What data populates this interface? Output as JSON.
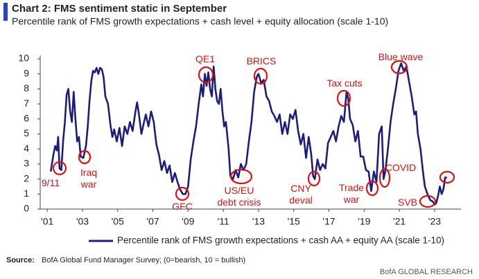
{
  "chart_data": {
    "type": "line",
    "title": "Chart 2: FMS sentiment static in September",
    "subtitle": "Percentile rank of FMS growth expectations + cash level + equity allocation (scale 1-10)",
    "xlim": [
      2000.6,
      2024.5
    ],
    "xticks": [
      {
        "value": 2001,
        "label": "'01"
      },
      {
        "value": 2003,
        "label": "'03"
      },
      {
        "value": 2005,
        "label": "'05"
      },
      {
        "value": 2007,
        "label": "'07"
      },
      {
        "value": 2009,
        "label": "'09"
      },
      {
        "value": 2011,
        "label": "'11"
      },
      {
        "value": 2013,
        "label": "'13"
      },
      {
        "value": 2015,
        "label": "'15"
      },
      {
        "value": 2017,
        "label": "'17"
      },
      {
        "value": 2019,
        "label": "'19"
      },
      {
        "value": 2021,
        "label": "'21"
      },
      {
        "value": 2023,
        "label": "'23"
      }
    ],
    "ylim": [
      0,
      10
    ],
    "yticks": [
      0,
      1,
      2,
      3,
      4,
      5,
      6,
      7,
      8,
      9,
      10
    ],
    "legend": "bottom",
    "series": [
      {
        "name": "Percentile rank of FMS growth expectations + cash AA + equity AA (scale 1-10)",
        "color": "#1c1c80",
        "x": [
          2001.2,
          2001.35,
          2001.45,
          2001.55,
          2001.62,
          2001.7,
          2001.8,
          2001.9,
          2002.0,
          2002.1,
          2002.2,
          2002.3,
          2002.4,
          2002.5,
          2002.6,
          2002.7,
          2002.8,
          2002.9,
          2003.05,
          2003.2,
          2003.3,
          2003.4,
          2003.5,
          2003.6,
          2003.7,
          2003.8,
          2003.9,
          2004.0,
          2004.1,
          2004.2,
          2004.3,
          2004.45,
          2004.6,
          2004.7,
          2004.8,
          2004.95,
          2005.1,
          2005.25,
          2005.4,
          2005.55,
          2005.7,
          2005.85,
          2006.0,
          2006.1,
          2006.2,
          2006.35,
          2006.5,
          2006.6,
          2006.75,
          2006.9,
          2007.05,
          2007.2,
          2007.35,
          2007.5,
          2007.65,
          2007.8,
          2007.95,
          2008.1,
          2008.25,
          2008.4,
          2008.55,
          2008.7,
          2008.85,
          2009.0,
          2009.15,
          2009.3,
          2009.45,
          2009.6,
          2009.75,
          2009.85,
          2009.95,
          2010.05,
          2010.15,
          2010.25,
          2010.35,
          2010.45,
          2010.55,
          2010.65,
          2010.75,
          2010.85,
          2010.95,
          2011.05,
          2011.15,
          2011.3,
          2011.4,
          2011.55,
          2011.7,
          2011.85,
          2012.0,
          2012.15,
          2012.3,
          2012.45,
          2012.6,
          2012.75,
          2012.9,
          2013.0,
          2013.15,
          2013.3,
          2013.45,
          2013.6,
          2013.75,
          2013.9,
          2014.05,
          2014.2,
          2014.35,
          2014.5,
          2014.65,
          2014.8,
          2014.95,
          2015.1,
          2015.25,
          2015.4,
          2015.55,
          2015.7,
          2015.85,
          2016.0,
          2016.1,
          2016.2,
          2016.35,
          2016.5,
          2016.65,
          2016.8,
          2016.95,
          2017.1,
          2017.25,
          2017.4,
          2017.55,
          2017.7,
          2017.85,
          2018.0,
          2018.1,
          2018.2,
          2018.35,
          2018.5,
          2018.65,
          2018.8,
          2018.95,
          2019.1,
          2019.25,
          2019.4,
          2019.55,
          2019.7,
          2019.85,
          2020.0,
          2020.1,
          2020.2,
          2020.35,
          2020.5,
          2020.65,
          2020.8,
          2020.95,
          2021.1,
          2021.25,
          2021.4,
          2021.55,
          2021.7,
          2021.85,
          2021.95,
          2022.05,
          2022.2,
          2022.35,
          2022.45,
          2022.6,
          2022.75,
          2022.9,
          2023.0,
          2023.1,
          2023.2,
          2023.3,
          2023.4,
          2023.5,
          2023.6,
          2023.7
        ],
        "values": [
          2.5,
          3.6,
          4.2,
          3.9,
          4.8,
          2.7,
          2.6,
          4.5,
          5.8,
          7.6,
          8.0,
          6.5,
          5.8,
          7.8,
          6.0,
          4.5,
          4.8,
          3.5,
          3.4,
          4.2,
          5.5,
          7.2,
          8.5,
          9.2,
          9.1,
          9.4,
          9.0,
          9.4,
          9.3,
          8.8,
          7.5,
          7.0,
          5.5,
          4.8,
          5.3,
          4.5,
          5.4,
          4.2,
          5.5,
          5.0,
          5.8,
          5.2,
          6.4,
          7.1,
          6.4,
          5.0,
          5.8,
          6.3,
          5.5,
          6.5,
          5.8,
          4.3,
          3.6,
          2.6,
          3.2,
          2.4,
          2.9,
          1.8,
          2.4,
          1.8,
          1.3,
          1.0,
          1.0,
          1.5,
          3.3,
          4.5,
          5.5,
          7.0,
          8.3,
          7.5,
          9.0,
          8.2,
          9.1,
          8.0,
          7.5,
          9.5,
          8.0,
          7.2,
          7.0,
          8.0,
          6.5,
          5.5,
          5.8,
          4.0,
          2.2,
          2.0,
          2.6,
          2.1,
          3.0,
          2.6,
          3.0,
          4.5,
          5.8,
          7.8,
          8.8,
          9.0,
          8.4,
          8.6,
          7.5,
          7.2,
          6.5,
          6.2,
          5.8,
          6.3,
          5.0,
          5.8,
          5.0,
          6.3,
          6.0,
          6.6,
          5.2,
          4.3,
          5.0,
          3.4,
          4.8,
          3.6,
          2.2,
          2.0,
          3.3,
          2.6,
          3.0,
          2.7,
          4.4,
          4.8,
          5.2,
          4.5,
          5.5,
          6.2,
          5.8,
          7.8,
          7.3,
          6.0,
          5.6,
          4.5,
          5.2,
          3.5,
          3.5,
          2.6,
          2.5,
          1.2,
          2.5,
          1.8,
          5.0,
          5.5,
          2.0,
          2.5,
          4.0,
          5.8,
          7.0,
          8.0,
          9.2,
          9.7,
          9.2,
          9.5,
          8.5,
          7.5,
          6.3,
          6.5,
          5.0,
          4.0,
          2.4,
          1.5,
          1.0,
          0.6,
          0.5,
          0.3,
          0.4,
          0.9,
          1.5,
          1.0,
          1.3,
          2.1,
          2.1
        ]
      }
    ],
    "annotations": [
      {
        "text": [
          "9/11"
        ]
      },
      {
        "text": [
          "Iraq",
          "war"
        ]
      },
      {
        "text": [
          "GFC"
        ]
      },
      {
        "text": [
          "QE1"
        ]
      },
      {
        "text": [
          "US/EU",
          "debt crisis"
        ]
      },
      {
        "text": [
          "BRICS"
        ]
      },
      {
        "text": [
          "CNY",
          "deval"
        ]
      },
      {
        "text": [
          "Tax cuts"
        ]
      },
      {
        "text": [
          "Trade",
          "war"
        ]
      },
      {
        "text": [
          "COVID"
        ]
      },
      {
        "text": [
          "Blue wave"
        ]
      },
      {
        "text": [
          "SVB"
        ]
      }
    ],
    "source": {
      "label": "Source:",
      "text": "BofA Global Fund Manager Survey; (0=bearish, 10 = bullish)"
    },
    "credit": "BofA GLOBAL RESEARCH"
  }
}
